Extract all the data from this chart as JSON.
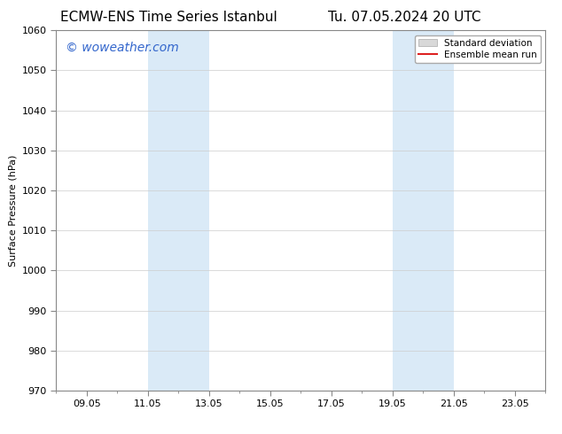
{
  "title_left": "ECMW-ENS Time Series Istanbul",
  "title_right": "Tu. 07.05.2024 20 UTC",
  "ylabel": "Surface Pressure (hPa)",
  "ylim": [
    970,
    1060
  ],
  "yticks": [
    970,
    980,
    990,
    1000,
    1010,
    1020,
    1030,
    1040,
    1050,
    1060
  ],
  "x_min": 0,
  "x_max": 16,
  "xtick_labels": [
    "09.05",
    "11.05",
    "13.05",
    "15.05",
    "17.05",
    "19.05",
    "21.05",
    "23.05"
  ],
  "xtick_positions": [
    1,
    3,
    5,
    7,
    9,
    11,
    13,
    15
  ],
  "shaded_bands": [
    {
      "x_start": 3,
      "x_end": 5
    },
    {
      "x_start": 11,
      "x_end": 13
    }
  ],
  "shaded_color": "#daeaf7",
  "watermark_text": "© woweather.com",
  "watermark_color": "#3366cc",
  "legend_std_label": "Standard deviation",
  "legend_mean_label": "Ensemble mean run",
  "legend_std_color": "#d8d8d8",
  "legend_mean_color": "#dd2222",
  "bg_color": "#ffffff",
  "grid_color": "#cccccc",
  "title_fontsize": 11,
  "axis_fontsize": 8,
  "tick_fontsize": 8,
  "watermark_fontsize": 10,
  "legend_fontsize": 7.5
}
